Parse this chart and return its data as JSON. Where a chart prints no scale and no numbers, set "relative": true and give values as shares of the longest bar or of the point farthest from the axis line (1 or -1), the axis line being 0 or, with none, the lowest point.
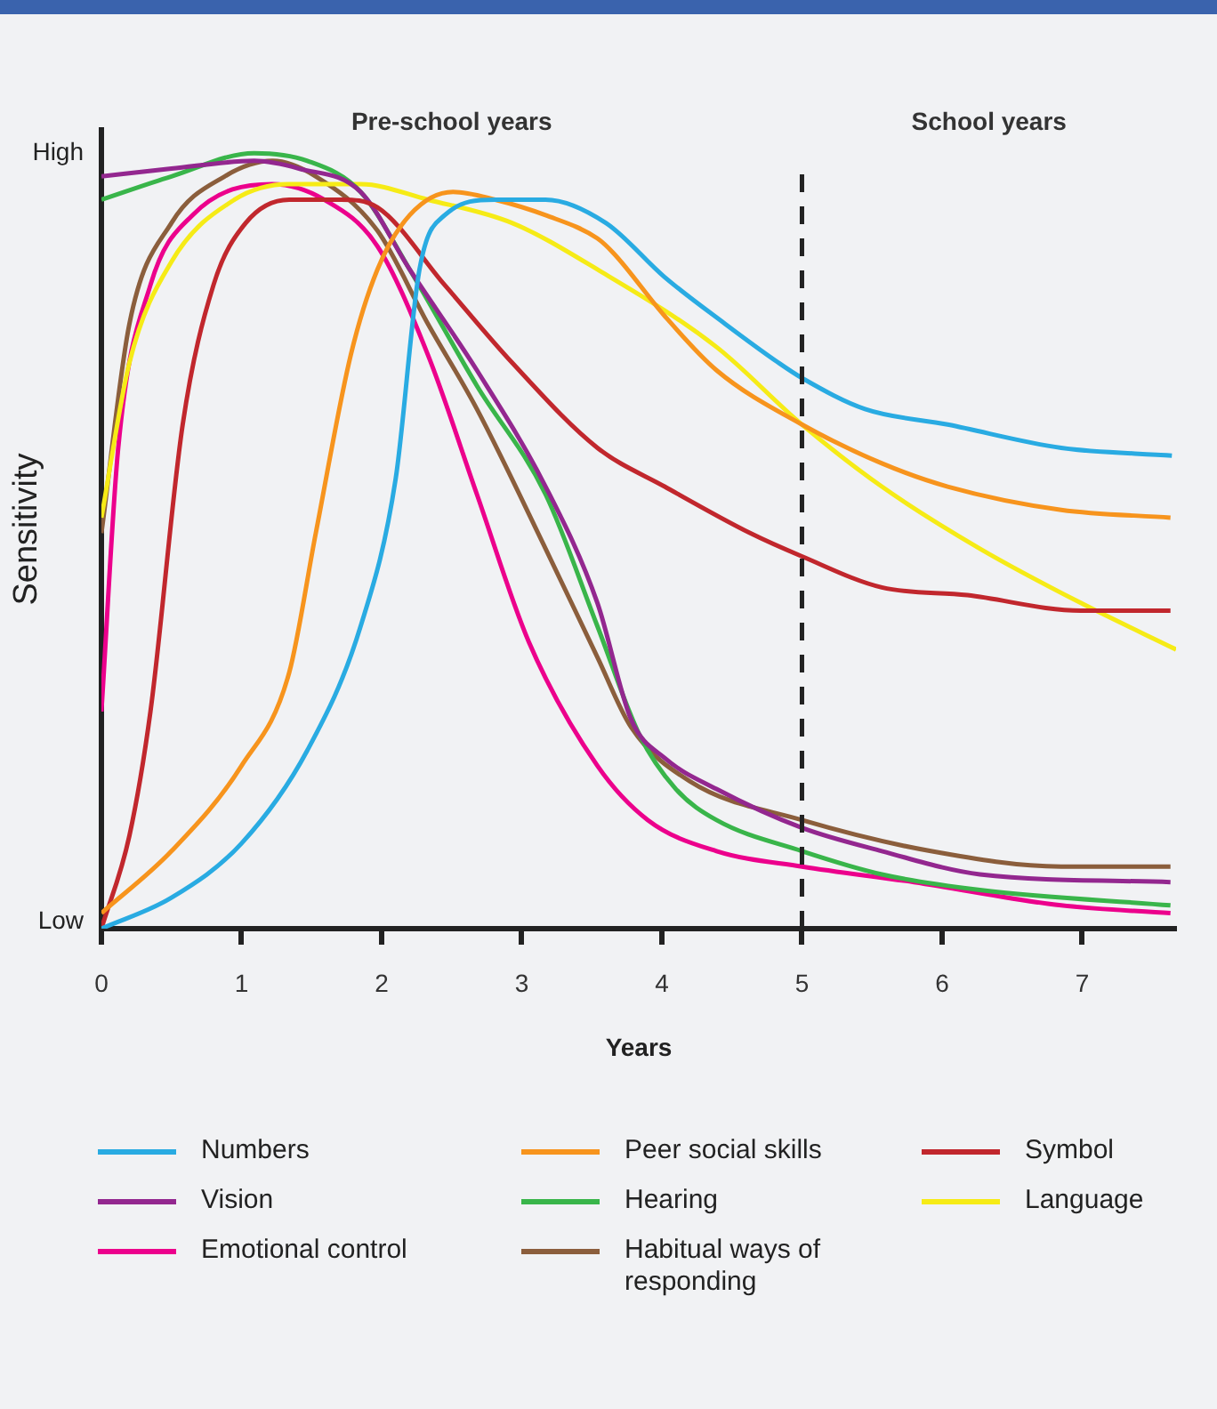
{
  "chart_data": {
    "type": "line",
    "xlabel": "Years",
    "ylabel": "Sensitivity",
    "annotations": [
      "Pre-school years",
      "School years",
      "High",
      "Low"
    ],
    "relative": true,
    "xlim": [
      0,
      7.67
    ],
    "xticks": [
      0,
      1,
      2,
      3,
      4,
      5,
      6,
      7
    ],
    "grid": false,
    "legend": "bottom",
    "marker": "none",
    "line_style": "solid",
    "ref_lines": [
      {
        "axis": "x",
        "value": 5,
        "color": "#222222",
        "line_style": "dashed"
      }
    ],
    "series": [
      {
        "name": "Numbers",
        "color": "#29abe2",
        "x": [
          0,
          0.5,
          1,
          1.47,
          1.85,
          2.1,
          2.27,
          2.45,
          2.81,
          3.17,
          3.6,
          4.02,
          4.45,
          4.83,
          5,
          5.45,
          6.04,
          6.85,
          7.64
        ],
        "values": [
          0,
          0.04,
          0.11,
          0.23,
          0.39,
          0.58,
          0.85,
          0.92,
          0.94,
          0.94,
          0.91,
          0.84,
          0.78,
          0.73,
          0.71,
          0.67,
          0.65,
          0.62,
          0.61
        ]
      },
      {
        "name": "Peer social skills",
        "color": "#f7941d",
        "x": [
          0,
          0.5,
          1,
          1.34,
          1.53,
          1.78,
          1.97,
          2.2,
          2.51,
          2.81,
          3.17,
          3.54,
          3.66,
          4.02,
          4.39,
          5,
          5.57,
          6.04,
          6.85,
          7.63
        ],
        "values": [
          0.02,
          0.1,
          0.21,
          0.33,
          0.51,
          0.74,
          0.85,
          0.92,
          0.95,
          0.94,
          0.92,
          0.89,
          0.87,
          0.79,
          0.72,
          0.65,
          0.6,
          0.57,
          0.54,
          0.53
        ]
      },
      {
        "name": "Symbol",
        "color": "#c1272d",
        "x": [
          0,
          0.2,
          0.35,
          0.58,
          0.8,
          1.03,
          1.34,
          1.71,
          1.97,
          2.45,
          2.93,
          3.54,
          4.02,
          4.63,
          5,
          5.57,
          6.18,
          6.99,
          7.63
        ],
        "values": [
          0,
          0.12,
          0.28,
          0.65,
          0.83,
          0.91,
          0.94,
          0.94,
          0.93,
          0.83,
          0.73,
          0.62,
          0.57,
          0.51,
          0.48,
          0.44,
          0.43,
          0.41,
          0.41
        ]
      },
      {
        "name": "Vision",
        "color": "#93278f",
        "x": [
          0,
          0.5,
          1.09,
          1.41,
          1.85,
          2.2,
          2.68,
          3.17,
          3.54,
          3.78,
          4.02,
          4.39,
          5,
          5.57,
          6.27,
          7.63
        ],
        "values": [
          0.97,
          0.98,
          0.99,
          0.98,
          0.95,
          0.85,
          0.72,
          0.57,
          0.42,
          0.27,
          0.22,
          0.18,
          0.13,
          0.1,
          0.07,
          0.06
        ]
      },
      {
        "name": "Hearing",
        "color": "#39b54a",
        "x": [
          0,
          0.5,
          1.09,
          1.47,
          1.85,
          2.2,
          2.68,
          3.17,
          3.54,
          3.84,
          4.1,
          4.39,
          5,
          5.57,
          6.27,
          7.63
        ],
        "values": [
          0.94,
          0.97,
          1,
          0.99,
          0.95,
          0.85,
          0.7,
          0.56,
          0.39,
          0.25,
          0.18,
          0.14,
          0.1,
          0.07,
          0.05,
          0.03
        ]
      },
      {
        "name": "Language",
        "color": "#f6eb16",
        "x": [
          0,
          0.2,
          0.5,
          0.95,
          1.34,
          1.85,
          2.33,
          2.93,
          3.54,
          4.39,
          5,
          5.57,
          6.27,
          6.99,
          7.67
        ],
        "values": [
          0.53,
          0.73,
          0.86,
          0.94,
          0.96,
          0.96,
          0.94,
          0.91,
          0.85,
          0.75,
          0.65,
          0.57,
          0.49,
          0.42,
          0.36
        ]
      },
      {
        "name": "Emotional control",
        "color": "#ec008c",
        "x": [
          0,
          0.12,
          0.35,
          0.65,
          1.22,
          1.59,
          1.97,
          2.33,
          2.68,
          3.05,
          3.54,
          3.9,
          4.39,
          5,
          5.8,
          6.85,
          7.63
        ],
        "values": [
          0.28,
          0.62,
          0.83,
          0.92,
          0.96,
          0.94,
          0.88,
          0.74,
          0.56,
          0.37,
          0.21,
          0.14,
          0.1,
          0.08,
          0.06,
          0.03,
          0.02
        ]
      },
      {
        "name": "Habitual ways of responding",
        "color": "#8b5e3c",
        "x": [
          0,
          0.2,
          0.5,
          0.88,
          1.22,
          1.53,
          1.97,
          2.33,
          2.68,
          3.17,
          3.54,
          3.78,
          4.2,
          5,
          5.92,
          6.85,
          7.63
        ],
        "values": [
          0.51,
          0.78,
          0.91,
          0.97,
          0.99,
          0.97,
          0.9,
          0.78,
          0.67,
          0.49,
          0.35,
          0.26,
          0.19,
          0.14,
          0.1,
          0.08,
          0.08
        ]
      }
    ]
  }
}
